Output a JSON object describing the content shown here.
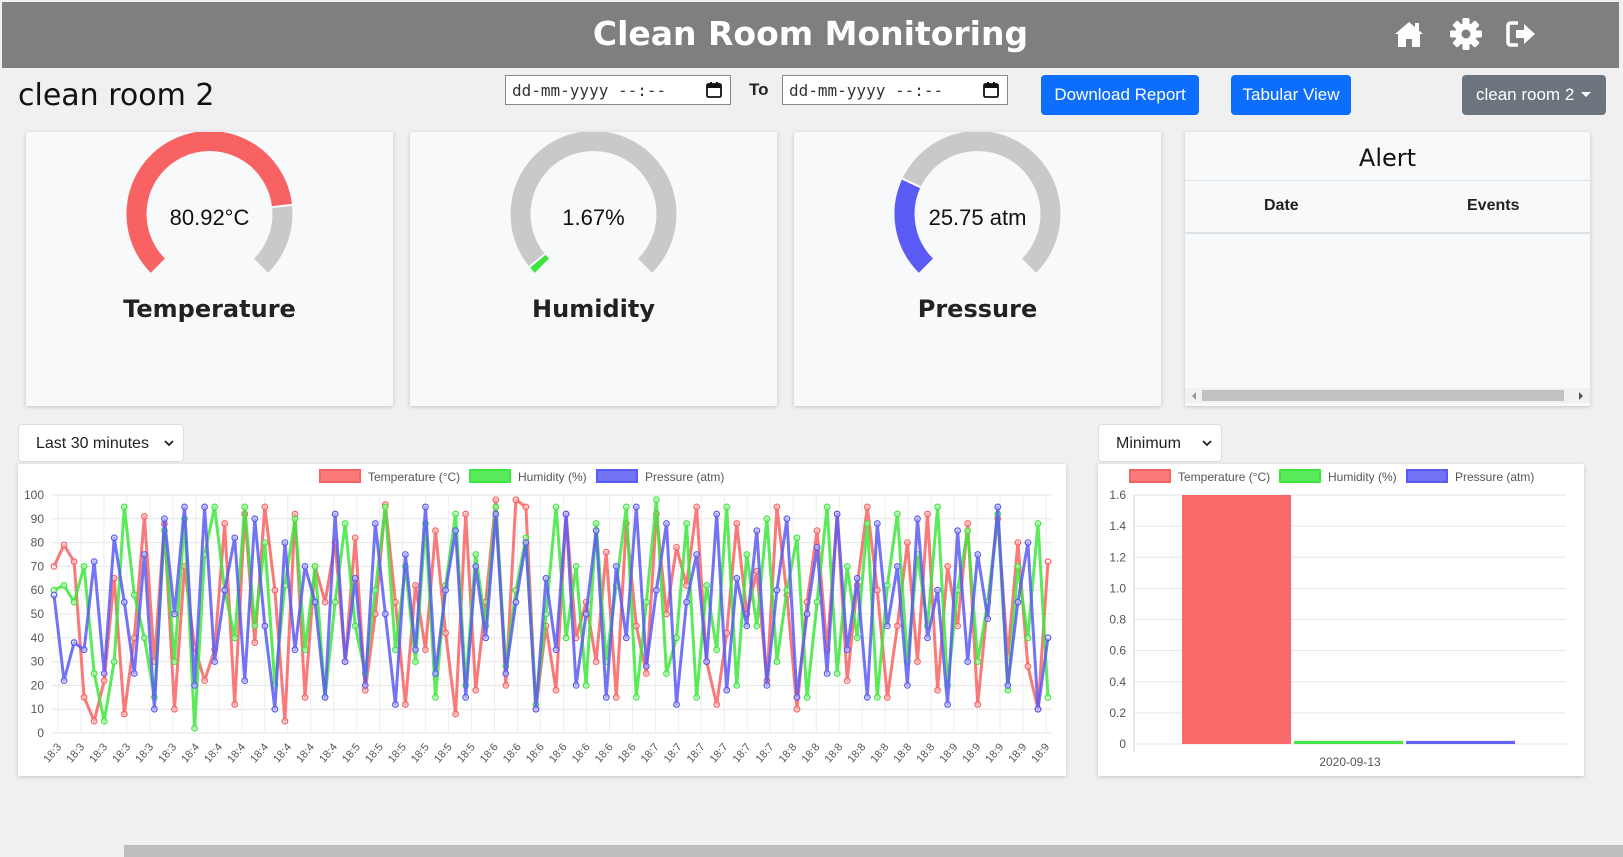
{
  "header": {
    "title": "Clean Room Monitoring",
    "icons": [
      "home-icon",
      "gear-icon",
      "logout-icon"
    ]
  },
  "room": {
    "title": "clean room 2"
  },
  "filters": {
    "from_placeholder": "dd-mm-yyyy --:--",
    "to_label": "To",
    "to_placeholder": "dd-mm-yyyy --:--",
    "download_label": "Download Report",
    "tabular_label": "Tabular View",
    "room_select": "clean room 2"
  },
  "gauges": [
    {
      "label": "Temperature",
      "value_text": "80.92°C",
      "fraction": 0.81,
      "color": "#f96262"
    },
    {
      "label": "Humidity",
      "value_text": "1.67%",
      "fraction": 0.02,
      "color": "#3de63d"
    },
    {
      "label": "Pressure",
      "value_text": "25.75 atm",
      "fraction": 0.26,
      "color": "#5a5af5"
    }
  ],
  "alert": {
    "title": "Alert",
    "col_date": "Date",
    "col_events": "Events",
    "rows": []
  },
  "line_panel": {
    "range_select": "Last 30 minutes"
  },
  "bar_panel": {
    "agg_select": "Minimum"
  },
  "colors": {
    "temperature": "#f96262",
    "humidity": "#3de63d",
    "pressure": "#5a5af5",
    "gauge_track": "#c8c9cb",
    "primary": "#0d6efd"
  },
  "chart_data": [
    {
      "type": "line",
      "legend": [
        "Temperature (°C)",
        "Humidity (%)",
        "Pressure (atm)"
      ],
      "ylim": [
        0,
        100
      ],
      "yticks": [
        0,
        10,
        20,
        30,
        40,
        50,
        60,
        70,
        80,
        90,
        100
      ],
      "xticks": [
        "18:3",
        "18:3",
        "18:3",
        "18:3",
        "18:3",
        "18:3",
        "18:4",
        "18:4",
        "18:4",
        "18:4",
        "18:4",
        "18:4",
        "18:4",
        "18:5",
        "18:5",
        "18:5",
        "18:5",
        "18:5",
        "18:5",
        "18:6",
        "18:6",
        "18:6",
        "18:6",
        "18:6",
        "18:6",
        "18:6",
        "18:7",
        "18:7",
        "18:7",
        "18:7",
        "18:7",
        "18:7",
        "18:8",
        "18:8",
        "18:8",
        "18:8",
        "18:8",
        "18:8",
        "18:8",
        "18:9",
        "18:9",
        "18:9",
        "18:9",
        "18:9"
      ],
      "series": [
        {
          "name": "Temperature (°C)",
          "values": [
            70,
            79,
            72,
            15,
            5,
            22,
            65,
            8,
            40,
            91,
            30,
            88,
            10,
            70,
            36,
            22,
            35,
            88,
            12,
            92,
            38,
            95,
            60,
            5,
            92,
            15,
            70,
            55,
            80,
            30,
            82,
            18,
            50,
            96,
            55,
            12,
            62,
            35,
            85,
            42,
            8,
            92,
            18,
            55,
            98,
            20,
            98,
            95,
            10,
            45,
            18,
            92,
            40,
            55,
            30,
            76,
            15,
            88,
            45,
            25,
            92,
            50,
            78,
            62,
            95,
            30,
            12,
            42,
            88,
            50,
            68,
            22,
            95,
            58,
            10,
            55,
            85,
            35,
            92,
            22,
            62,
            95,
            60,
            15,
            45,
            80,
            30,
            92,
            18,
            70,
            45,
            88,
            12,
            55,
            90,
            32,
            80,
            28,
            10,
            72
          ]
        },
        {
          "name": "Humidity (%)",
          "values": [
            60,
            62,
            55,
            70,
            25,
            5,
            30,
            95,
            58,
            40,
            15,
            85,
            30,
            90,
            2,
            75,
            95,
            60,
            40,
            95,
            45,
            80,
            20,
            62,
            90,
            35,
            70,
            15,
            55,
            88,
            45,
            25,
            60,
            95,
            35,
            70,
            30,
            88,
            15,
            62,
            92,
            20,
            75,
            45,
            95,
            28,
            60,
            82,
            12,
            50,
            95,
            40,
            70,
            20,
            88,
            30,
            62,
            95,
            15,
            55,
            98,
            25,
            40,
            88,
            15,
            62,
            35,
            95,
            20,
            75,
            45,
            90,
            30,
            60,
            82,
            15,
            55,
            95,
            25,
            70,
            40,
            88,
            15,
            62,
            92,
            30,
            75,
            45,
            95,
            20,
            60,
            85,
            30,
            55,
            92,
            18,
            70,
            40,
            88,
            15
          ]
        },
        {
          "name": "Pressure (atm)",
          "values": [
            58,
            22,
            38,
            35,
            72,
            25,
            82,
            55,
            25,
            75,
            10,
            90,
            50,
            95,
            20,
            95,
            30,
            60,
            82,
            22,
            90,
            45,
            10,
            80,
            35,
            70,
            55,
            15,
            92,
            30,
            65,
            20,
            88,
            50,
            12,
            75,
            35,
            95,
            25,
            60,
            85,
            15,
            70,
            40,
            92,
            25,
            55,
            80,
            10,
            65,
            35,
            92,
            20,
            50,
            85,
            15,
            70,
            40,
            95,
            28,
            60,
            88,
            12,
            55,
            75,
            30,
            92,
            18,
            65,
            45,
            85,
            20,
            60,
            90,
            15,
            50,
            78,
            25,
            92,
            35,
            65,
            15,
            88,
            45,
            70,
            20,
            90,
            40,
            60,
            12,
            85,
            30,
            75,
            48,
            95,
            20,
            55,
            80,
            10,
            40
          ]
        }
      ]
    },
    {
      "type": "bar",
      "legend": [
        "Temperature (°C)",
        "Humidity (%)",
        "Pressure (atm)"
      ],
      "categories": [
        "2020-09-13"
      ],
      "series": [
        {
          "name": "Temperature (°C)",
          "values": [
            1.6
          ]
        },
        {
          "name": "Humidity (%)",
          "values": [
            0.02
          ]
        },
        {
          "name": "Pressure (atm)",
          "values": [
            0.02
          ]
        }
      ],
      "ylim": [
        0,
        1.6
      ],
      "yticks": [
        0,
        0.2,
        0.4,
        0.6,
        0.8,
        1.0,
        1.2,
        1.4,
        1.6
      ]
    }
  ]
}
